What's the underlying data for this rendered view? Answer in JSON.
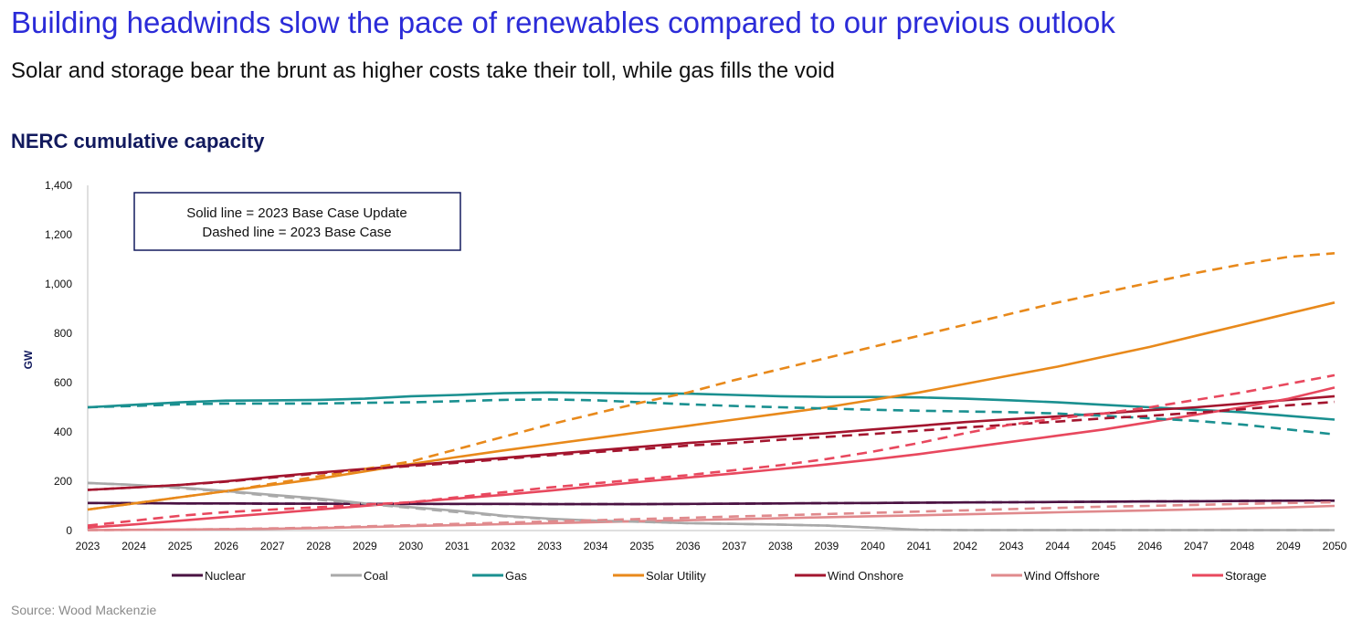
{
  "title": "Building headwinds slow the pace of renewables compared to our previous outlook",
  "subtitle": "Solar and storage bear the brunt as higher costs take their toll, while gas fills the void",
  "source": "Source: Wood Mackenzie",
  "chart_data": {
    "type": "line",
    "title": "NERC cumulative capacity",
    "ylabel": "GW",
    "xlabel": "",
    "ylim": [
      0,
      1400
    ],
    "yticks": [
      0,
      200,
      400,
      600,
      800,
      1000,
      1200,
      1400
    ],
    "ytick_labels": [
      "0",
      "200",
      "400",
      "600",
      "800",
      "1,000",
      "1,200",
      "1,400"
    ],
    "x": [
      2023,
      2024,
      2025,
      2026,
      2027,
      2028,
      2029,
      2030,
      2031,
      2032,
      2033,
      2034,
      2035,
      2036,
      2037,
      2038,
      2039,
      2040,
      2041,
      2042,
      2043,
      2044,
      2045,
      2046,
      2047,
      2048,
      2049,
      2050
    ],
    "grid": false,
    "legend_position": "bottom",
    "annotation": [
      "Solid line = 2023 Base Case Update",
      "Dashed line = 2023 Base Case"
    ],
    "series": [
      {
        "name": "Nuclear",
        "color": "#4a1242",
        "update": [
          112,
          111,
          110,
          110,
          109,
          109,
          108,
          108,
          108,
          108,
          107,
          107,
          107,
          108,
          109,
          110,
          111,
          112,
          113,
          114,
          115,
          116,
          117,
          118,
          119,
          120,
          121,
          121
        ],
        "base": [
          112,
          111,
          110,
          110,
          109,
          109,
          108,
          108,
          108,
          108,
          107,
          107,
          107,
          108,
          109,
          110,
          111,
          112,
          113,
          114,
          115,
          116,
          117,
          118,
          119,
          120,
          121,
          122
        ]
      },
      {
        "name": "Coal",
        "color": "#a9a9a9",
        "update": [
          193,
          185,
          175,
          160,
          145,
          130,
          110,
          95,
          80,
          60,
          48,
          40,
          36,
          30,
          27,
          24,
          20,
          12,
          3,
          2,
          2,
          2,
          2,
          2,
          2,
          2,
          2,
          2
        ],
        "base": [
          193,
          185,
          172,
          158,
          140,
          125,
          108,
          92,
          75,
          58,
          46,
          40,
          35,
          30,
          27,
          24,
          20,
          12,
          3,
          2,
          2,
          2,
          2,
          2,
          2,
          2,
          2,
          2
        ]
      },
      {
        "name": "Gas",
        "color": "#1a9090",
        "update": [
          500,
          510,
          520,
          527,
          528,
          530,
          535,
          545,
          550,
          557,
          560,
          558,
          556,
          555,
          550,
          545,
          542,
          542,
          540,
          535,
          528,
          520,
          510,
          500,
          490,
          480,
          465,
          450
        ],
        "base": [
          500,
          505,
          512,
          515,
          515,
          515,
          518,
          520,
          525,
          530,
          532,
          528,
          520,
          512,
          505,
          500,
          495,
          490,
          486,
          483,
          480,
          475,
          465,
          455,
          445,
          430,
          410,
          390
        ]
      },
      {
        "name": "Solar Utility",
        "color": "#e8891b",
        "update": [
          85,
          110,
          135,
          160,
          185,
          210,
          240,
          270,
          298,
          325,
          350,
          375,
          400,
          425,
          450,
          475,
          500,
          530,
          560,
          595,
          630,
          665,
          705,
          745,
          790,
          835,
          880,
          925
        ],
        "base": [
          85,
          110,
          135,
          160,
          190,
          220,
          250,
          280,
          330,
          380,
          430,
          475,
          520,
          560,
          610,
          655,
          700,
          745,
          790,
          835,
          880,
          925,
          965,
          1005,
          1045,
          1080,
          1110,
          1125
        ]
      },
      {
        "name": "Wind Onshore",
        "color": "#a3152e",
        "update": [
          165,
          175,
          185,
          200,
          218,
          235,
          250,
          265,
          280,
          295,
          310,
          325,
          340,
          355,
          368,
          382,
          395,
          410,
          425,
          440,
          452,
          463,
          475,
          488,
          500,
          515,
          530,
          545
        ],
        "base": [
          165,
          175,
          185,
          198,
          215,
          232,
          248,
          262,
          275,
          290,
          305,
          318,
          330,
          345,
          355,
          368,
          380,
          392,
          405,
          418,
          430,
          442,
          455,
          465,
          478,
          492,
          508,
          522
        ]
      },
      {
        "name": "Wind Offshore",
        "color": "#e08a8d",
        "update": [
          2,
          3,
          4,
          5,
          7,
          10,
          14,
          18,
          22,
          26,
          30,
          34,
          38,
          42,
          46,
          50,
          54,
          58,
          62,
          66,
          70,
          74,
          78,
          82,
          86,
          90,
          94,
          100
        ],
        "base": [
          2,
          3,
          4,
          6,
          9,
          12,
          17,
          22,
          27,
          32,
          37,
          42,
          47,
          52,
          57,
          62,
          67,
          72,
          77,
          82,
          87,
          92,
          97,
          100,
          104,
          108,
          112,
          115
        ]
      },
      {
        "name": "Storage",
        "color": "#e8485e",
        "update": [
          12,
          25,
          40,
          55,
          70,
          85,
          100,
          115,
          130,
          145,
          162,
          180,
          198,
          215,
          232,
          250,
          268,
          288,
          310,
          335,
          360,
          385,
          410,
          440,
          470,
          500,
          535,
          580
        ],
        "base": [
          20,
          40,
          60,
          75,
          85,
          95,
          105,
          115,
          135,
          155,
          175,
          192,
          208,
          225,
          245,
          265,
          290,
          320,
          355,
          395,
          430,
          455,
          475,
          500,
          530,
          560,
          595,
          630
        ]
      }
    ]
  }
}
